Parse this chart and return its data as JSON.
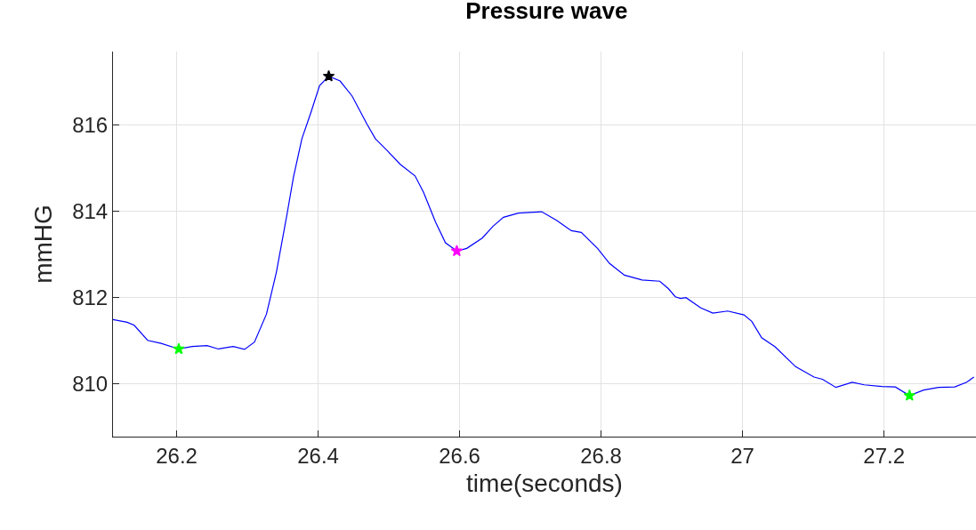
{
  "chart_data": {
    "type": "line",
    "title": "Pressure wave",
    "xlabel": "time(seconds)",
    "ylabel": "mmHG",
    "xlim": [
      26.11,
      27.33
    ],
    "ylim": [
      808.78,
      817.7
    ],
    "xticks": [
      26.2,
      26.4,
      26.6,
      26.8,
      27,
      27.2
    ],
    "yticks": [
      810,
      812,
      814,
      816
    ],
    "grid": true,
    "line_style": "solid",
    "series": [
      {
        "color": "#0000ff",
        "marker": "none",
        "x": [
          26.11,
          26.13,
          26.14,
          26.159,
          26.178,
          26.203,
          26.222,
          26.243,
          26.259,
          26.28,
          26.296,
          26.31,
          26.327,
          26.341,
          26.356,
          26.365,
          26.377,
          26.39,
          26.402,
          26.415,
          26.431,
          26.448,
          26.469,
          26.481,
          26.498,
          26.516,
          26.537,
          26.549,
          26.566,
          26.58,
          26.596,
          26.61,
          26.632,
          26.647,
          26.662,
          26.683,
          26.716,
          26.737,
          26.758,
          26.772,
          26.795,
          26.812,
          26.833,
          26.858,
          26.883,
          26.895,
          26.905,
          26.912,
          26.92,
          26.941,
          26.958,
          26.979,
          27.002,
          27.013,
          27.027,
          27.046,
          27.075,
          27.101,
          27.113,
          27.132,
          27.155,
          27.172,
          27.197,
          27.216,
          27.236,
          27.256,
          27.277,
          27.3,
          27.317,
          27.327
        ],
        "values": [
          811.49,
          811.43,
          811.36,
          811.01,
          810.94,
          810.81,
          810.87,
          810.89,
          810.81,
          810.87,
          810.8,
          810.97,
          811.62,
          812.59,
          813.93,
          814.78,
          815.68,
          816.3,
          816.91,
          817.13,
          817.02,
          816.67,
          816.02,
          815.68,
          815.4,
          815.09,
          814.82,
          814.44,
          813.75,
          813.27,
          813.08,
          813.14,
          813.38,
          813.65,
          813.86,
          813.96,
          813.99,
          813.79,
          813.55,
          813.51,
          813.14,
          812.79,
          812.52,
          812.41,
          812.38,
          812.21,
          812.02,
          811.98,
          812.0,
          811.76,
          811.64,
          811.69,
          811.6,
          811.45,
          811.07,
          810.86,
          810.4,
          810.16,
          810.11,
          809.92,
          810.04,
          809.98,
          809.94,
          809.93,
          809.73,
          809.86,
          809.92,
          809.93,
          810.04,
          810.16
        ]
      },
      {
        "type": "scatter",
        "color": "#00ff00",
        "marker": "star",
        "x": [
          26.203,
          27.236
        ],
        "values": [
          810.81,
          809.73
        ]
      },
      {
        "type": "scatter",
        "color": "#000000",
        "marker": "star",
        "x": [
          26.415
        ],
        "values": [
          817.13
        ]
      },
      {
        "type": "scatter",
        "color": "#ff00ff",
        "marker": "star",
        "x": [
          26.596
        ],
        "values": [
          813.08
        ]
      }
    ]
  }
}
